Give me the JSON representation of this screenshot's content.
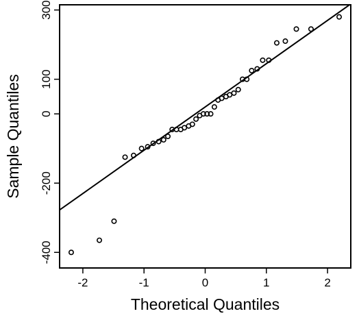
{
  "chart_data": {
    "type": "scatter",
    "title": "",
    "xlabel": "Theoretical Quantiles",
    "ylabel": "Sample Quantiles",
    "xlim": [
      -2.38,
      2.38
    ],
    "ylim": [
      -445,
      315
    ],
    "x_ticks": [
      -2,
      -1,
      0,
      1,
      2
    ],
    "x_tick_labels": [
      "-2",
      "-1",
      "0",
      "1",
      "2"
    ],
    "y_ticks": [
      -400,
      -200,
      0,
      100,
      300
    ],
    "y_tick_labels": [
      "-400",
      "-200",
      "0",
      "100",
      "300"
    ],
    "grid": false,
    "legend": "none",
    "marker": "open-circle",
    "colors": {
      "points": "#000000",
      "line": "#000000",
      "frame": "#000000"
    },
    "reference_line": {
      "slope": 125,
      "intercept": 20
    },
    "series": [
      {
        "x": [
          -2.19,
          -1.73,
          -1.49,
          -1.31,
          -1.17,
          -1.04,
          -0.94,
          -0.85,
          -0.76,
          -0.68,
          -0.61,
          -0.54,
          -0.47,
          -0.4,
          -0.34,
          -0.27,
          -0.21,
          -0.15,
          -0.09,
          -0.03,
          0.03,
          0.09,
          0.15,
          0.21,
          0.27,
          0.34,
          0.4,
          0.47,
          0.54,
          0.61,
          0.68,
          0.76,
          0.85,
          0.94,
          1.04,
          1.17,
          1.31,
          1.49,
          1.73,
          2.19
        ],
        "y": [
          -400,
          -365,
          -310,
          -125,
          -120,
          -100,
          -95,
          -85,
          -80,
          -75,
          -65,
          -45,
          -45,
          -45,
          -40,
          -35,
          -30,
          -15,
          -5,
          0,
          0,
          0,
          20,
          40,
          45,
          50,
          55,
          60,
          70,
          100,
          100,
          125,
          130,
          155,
          155,
          205,
          210,
          245,
          245,
          280
        ]
      }
    ]
  }
}
